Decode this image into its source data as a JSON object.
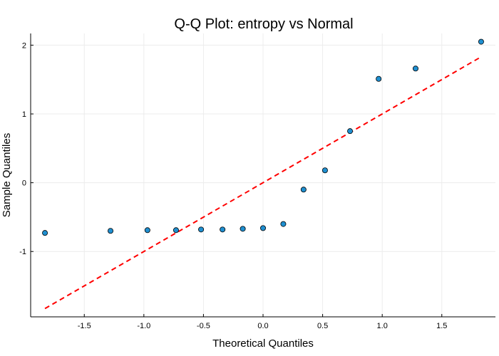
{
  "chart_data": {
    "type": "scatter",
    "title": "Q-Q Plot: entropy vs Normal",
    "xlabel": "Theoretical Quantiles",
    "ylabel": "Sample Quantiles",
    "xlim": [
      -1.95,
      1.95
    ],
    "ylim": [
      -1.95,
      2.17
    ],
    "xticks": [
      -1.5,
      -1.0,
      -0.5,
      0.0,
      0.5,
      1.0,
      1.5
    ],
    "xtick_labels": [
      "-1.5",
      "-1.0",
      "-0.5",
      "0.0",
      "0.5",
      "1.0",
      "1.5"
    ],
    "yticks": [
      -1,
      0,
      1,
      2
    ],
    "ytick_labels": [
      "-1",
      "0",
      "1",
      "2"
    ],
    "grid": true,
    "points": [
      {
        "x": -1.83,
        "y": -0.73
      },
      {
        "x": -1.28,
        "y": -0.7
      },
      {
        "x": -0.97,
        "y": -0.69
      },
      {
        "x": -0.73,
        "y": -0.69
      },
      {
        "x": -0.52,
        "y": -0.68
      },
      {
        "x": -0.34,
        "y": -0.68
      },
      {
        "x": -0.17,
        "y": -0.67
      },
      {
        "x": 0.0,
        "y": -0.66
      },
      {
        "x": 0.17,
        "y": -0.6
      },
      {
        "x": 0.34,
        "y": -0.1
      },
      {
        "x": 0.52,
        "y": 0.18
      },
      {
        "x": 0.73,
        "y": 0.75
      },
      {
        "x": 0.97,
        "y": 1.51
      },
      {
        "x": 1.28,
        "y": 1.66
      },
      {
        "x": 1.83,
        "y": 2.05
      }
    ],
    "reference_line": {
      "x": [
        -1.83,
        1.83
      ],
      "y": [
        -1.83,
        1.83
      ]
    },
    "colors": {
      "point_fill": "#1f8fd0",
      "point_edge": "#000000",
      "reference_line": "#ff0000"
    }
  }
}
